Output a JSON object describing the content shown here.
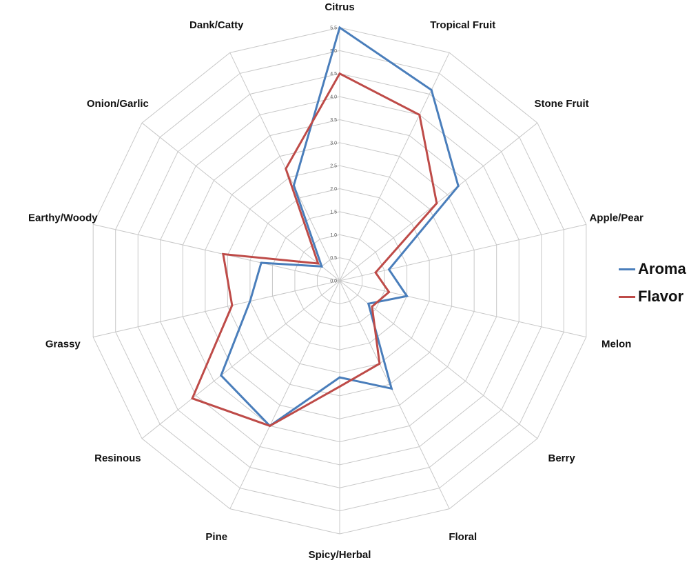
{
  "chart_data": {
    "type": "radar",
    "title": "",
    "categories": [
      "Citrus",
      "Tropical Fruit",
      "Stone Fruit",
      "Apple/Pear",
      "Melon",
      "Berry",
      "Floral",
      "Spicy/Herbal",
      "Pine",
      "Resinous",
      "Grassy",
      "Earthy/Woody",
      "Onion/Garlic",
      "Dank/Catty"
    ],
    "series": [
      {
        "name": "Aroma",
        "color": "#4a7ebb",
        "values": [
          5.5,
          4.6,
          3.3,
          1.1,
          1.5,
          0.8,
          2.6,
          2.1,
          3.5,
          3.3,
          2.0,
          1.75,
          0.5,
          2.3
        ]
      },
      {
        "name": "Flavor",
        "color": "#be4b48",
        "values": [
          4.5,
          4.0,
          2.7,
          0.8,
          1.1,
          0.9,
          2.0,
          2.3,
          3.5,
          4.1,
          2.4,
          2.6,
          0.6,
          2.7
        ]
      }
    ],
    "rlim": [
      0,
      5.5
    ],
    "rticks": [
      "0.0",
      "0.5",
      "1.0",
      "1.5",
      "2.0",
      "2.5",
      "3.0",
      "3.5",
      "4.0",
      "4.5",
      "5.0",
      "5.5"
    ],
    "grid": true,
    "legend_position": "right"
  }
}
